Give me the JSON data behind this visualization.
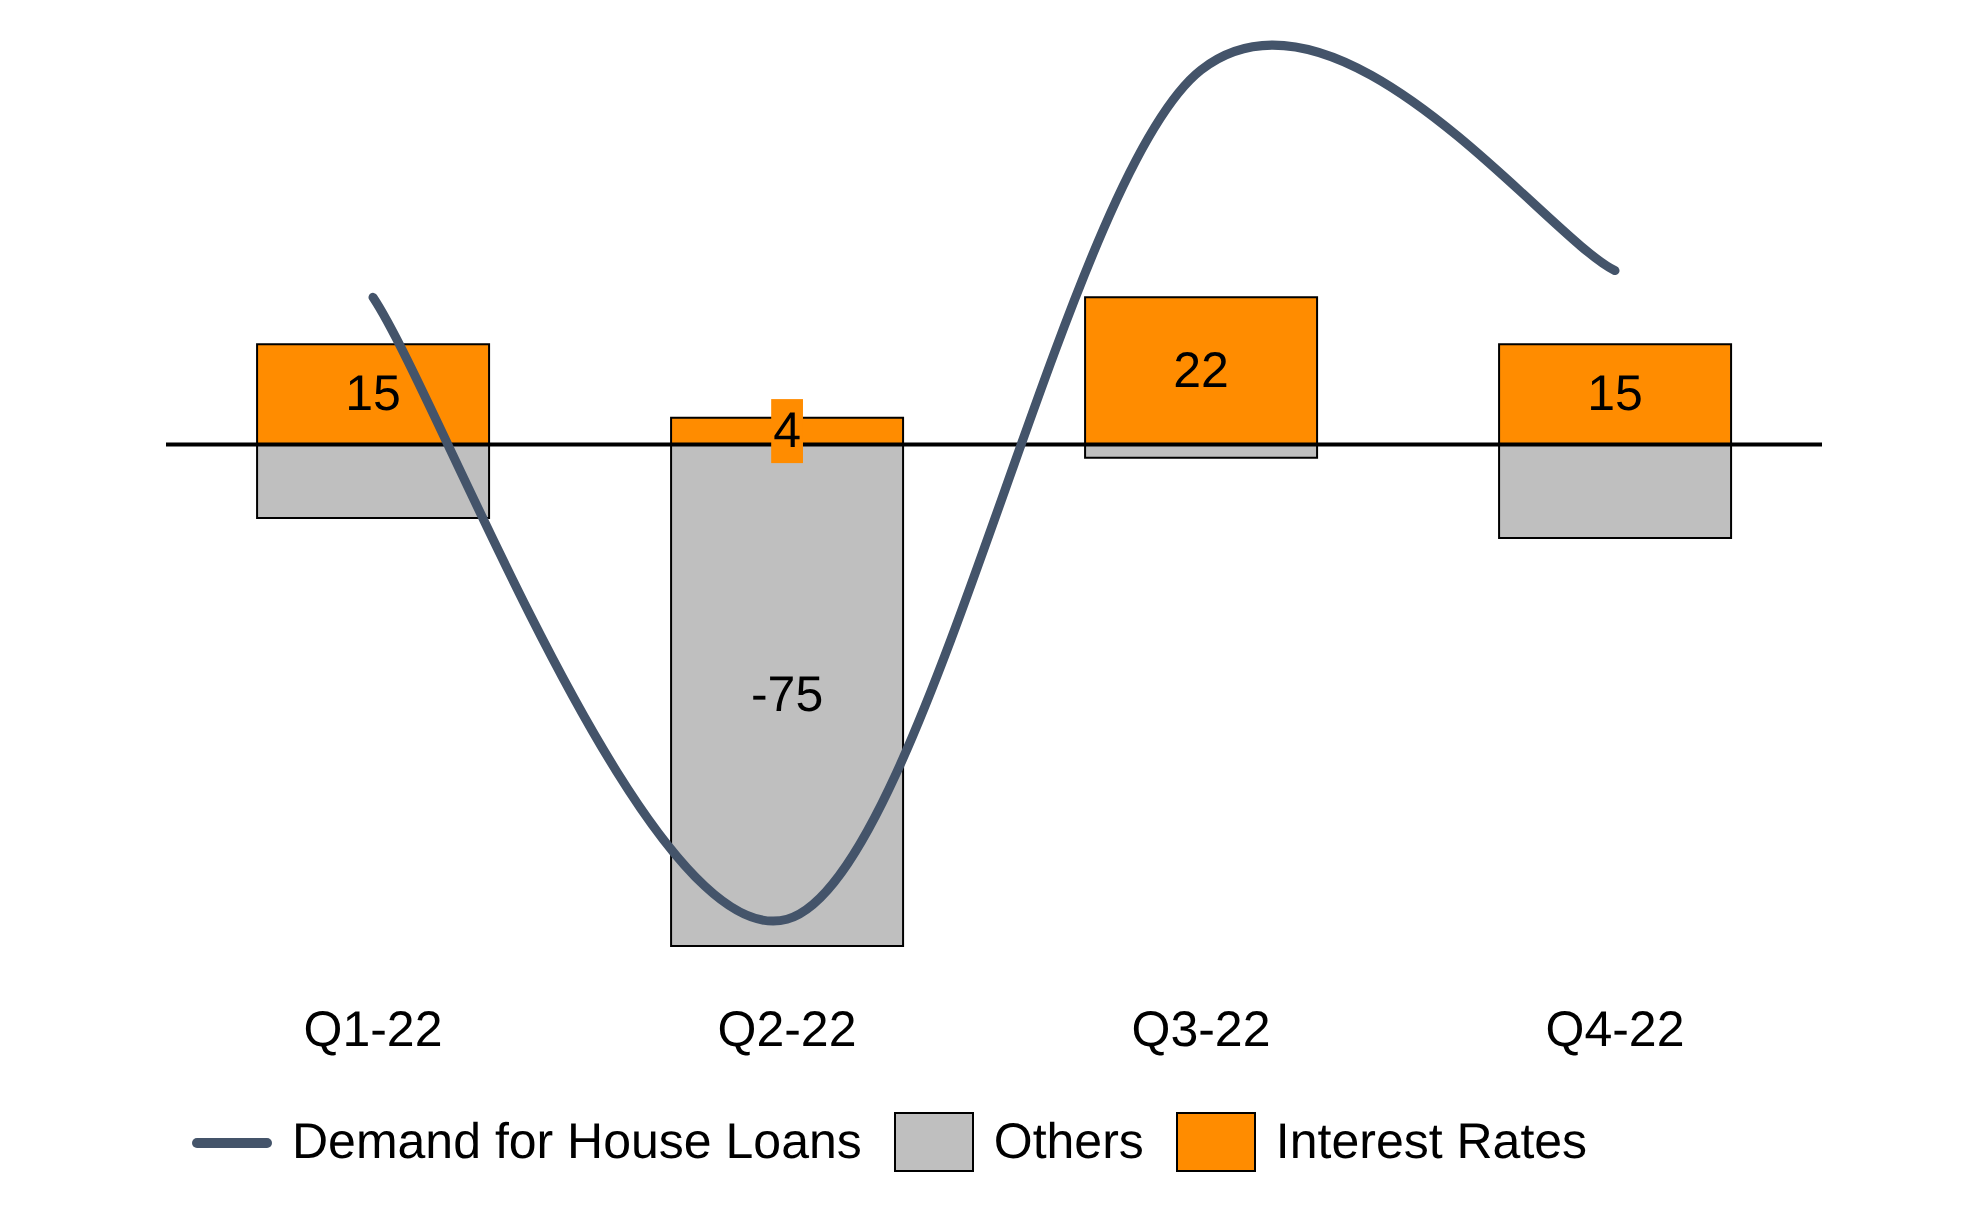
{
  "chart_data": {
    "type": "bar",
    "categories": [
      "Q1-22",
      "Q2-22",
      "Q3-22",
      "Q4-22"
    ],
    "stacked": true,
    "series": [
      {
        "name": "Demand for House Loans",
        "type": "line",
        "color": "#44546a",
        "values": [
          22,
          -71,
          56,
          26
        ]
      },
      {
        "name": "Others",
        "color": "#bfbfbf",
        "values": [
          -11,
          -75,
          -2,
          -14
        ],
        "value_labels": [
          null,
          "-75",
          null,
          null
        ]
      },
      {
        "name": "Interest Rates",
        "color": "#ff8c00",
        "values": [
          15,
          4,
          22,
          15
        ],
        "value_labels": [
          "15",
          "4",
          "22",
          "15"
        ]
      }
    ],
    "legend": "bottom",
    "tick_labels": "x"
  }
}
